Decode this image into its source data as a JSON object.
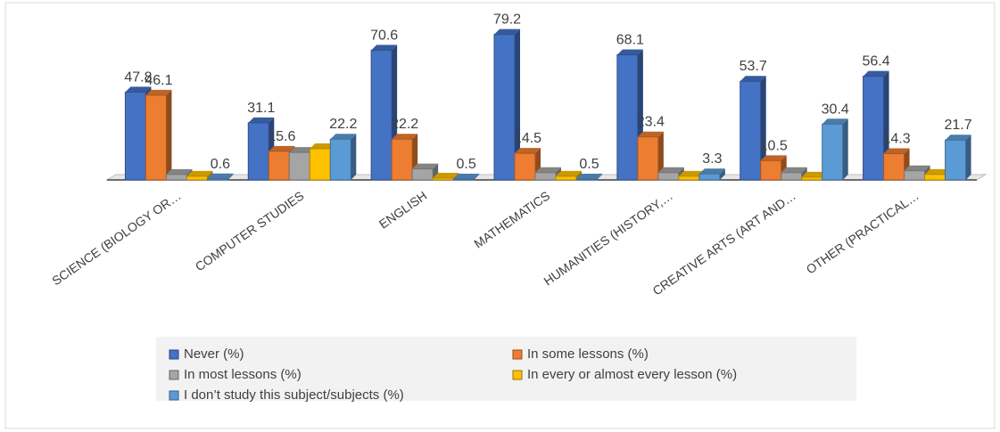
{
  "chart_data": {
    "type": "bar3d",
    "categories": [
      "SCIENCE (BIOLOGY OR…",
      "COMPUTER STUDIES",
      "ENGLISH",
      "MATHEMATICS",
      "HUMANITIES (HISTORY,…",
      "CREATIVE ARTS (ART AND…",
      "OTHER (PRACTICAL…"
    ],
    "series": [
      {
        "name": "Never (%)",
        "color": "#4472c4",
        "labels": true,
        "values": [
          47.8,
          31.1,
          70.6,
          79.2,
          68.1,
          53.7,
          56.4
        ]
      },
      {
        "name": "In some lessons (%)",
        "color": "#ed7d31",
        "labels": true,
        "values": [
          46.1,
          15.6,
          22.2,
          14.5,
          23.4,
          10.5,
          14.3
        ]
      },
      {
        "name": "In most lessons (%)",
        "color": "#a5a5a5",
        "labels": false,
        "values": [
          3,
          15,
          6,
          4,
          4,
          4,
          5
        ]
      },
      {
        "name": "In every or almost every lesson (%)",
        "color": "#ffc000",
        "labels": false,
        "values": [
          2,
          17,
          1,
          2,
          2,
          1.5,
          3
        ]
      },
      {
        "name": "I don’t study this subject/subjects (%)",
        "color": "#5b9bd5",
        "labels": true,
        "values": [
          0.6,
          22.2,
          0.5,
          0.5,
          3.3,
          30.4,
          21.7
        ]
      }
    ],
    "ylim": [
      0,
      80
    ]
  }
}
